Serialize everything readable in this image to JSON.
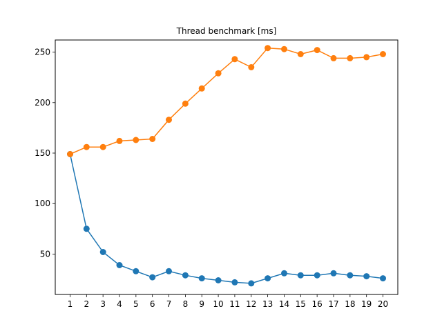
{
  "chart_data": {
    "type": "line",
    "title": "Thread benchmark [ms]",
    "xlabel": "",
    "ylabel": "",
    "x": [
      1,
      2,
      3,
      4,
      5,
      6,
      7,
      8,
      9,
      10,
      11,
      12,
      13,
      14,
      15,
      16,
      17,
      18,
      19,
      20
    ],
    "xlim": [
      0.1,
      20.9
    ],
    "ylim": [
      10,
      262
    ],
    "yticks": [
      50,
      100,
      150,
      200,
      250
    ],
    "grid": false,
    "marker": "circle",
    "series": [
      {
        "color": "#1f77b4",
        "values": [
          149,
          75,
          52,
          39,
          33,
          27,
          33,
          29,
          26,
          24,
          22,
          21,
          26,
          31,
          29,
          29,
          31,
          29,
          28,
          26
        ]
      },
      {
        "color": "#ff7f0e",
        "values": [
          149,
          156,
          156,
          162,
          163,
          164,
          183,
          199,
          214,
          229,
          243,
          235,
          254,
          253,
          248,
          252,
          244,
          244,
          245,
          248
        ]
      }
    ]
  }
}
